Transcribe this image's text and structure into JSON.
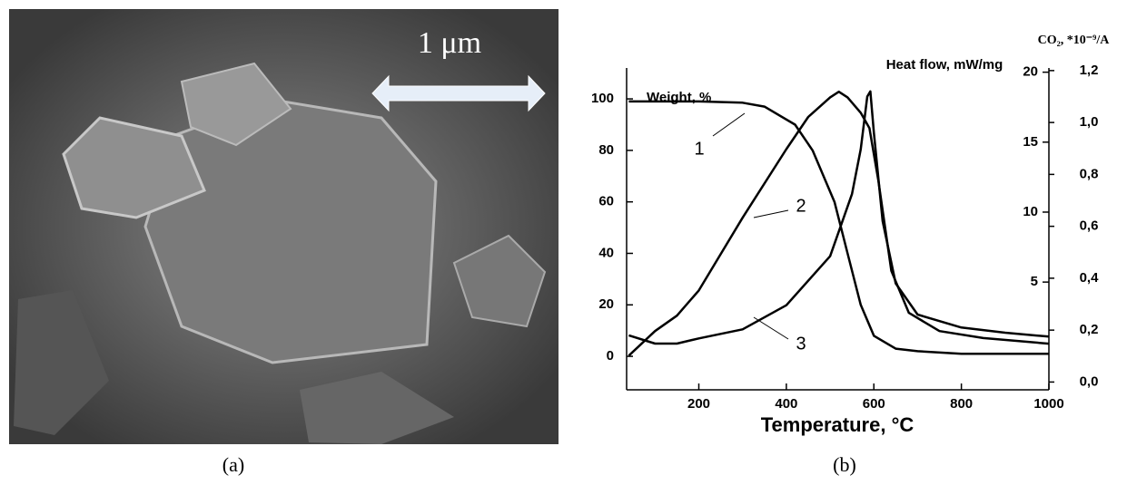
{
  "image": {
    "scale_label": "1 μm",
    "caption": "(a)"
  },
  "chart_data": {
    "type": "line",
    "caption": "(b)",
    "x_label": "Temperature, °C",
    "y_label": "Weight, %",
    "y2_label": "Heat flow, mW/mg",
    "y3_label": "CO₂, *10⁻⁹/A",
    "xlim": [
      35,
      1000
    ],
    "xticks": [
      200,
      400,
      600,
      800,
      1000
    ],
    "ylim": [
      -13,
      112
    ],
    "yticks": [
      0,
      20,
      40,
      60,
      80,
      100
    ],
    "y2lim": [
      -2.7,
      20.3
    ],
    "y2ticks": [
      5,
      10,
      15,
      20
    ],
    "y3lim": [
      -0.03,
      1.21
    ],
    "y3ticks": [
      {
        "value": 0,
        "label": "0,0"
      },
      {
        "value": 0.2,
        "label": "0,2"
      },
      {
        "value": 0.4,
        "label": "0,4"
      },
      {
        "value": 0.6,
        "label": "0,6"
      },
      {
        "value": 0.8,
        "label": "0,8"
      },
      {
        "value": 1.0,
        "label": "1,0"
      },
      {
        "value": 1.2,
        "label": "1,2"
      }
    ],
    "annotations": [
      "1",
      "2",
      "3"
    ],
    "series": [
      {
        "color": "#000000",
        "axis": "y",
        "x": [
          40,
          100,
          200,
          300,
          350,
          420,
          460,
          510,
          540,
          570,
          600,
          650,
          700,
          800,
          1000
        ],
        "values": [
          99,
          99,
          99,
          98.5,
          97,
          90,
          80,
          60,
          40,
          20,
          8,
          3,
          2,
          1,
          1
        ]
      },
      {
        "color": "#000000",
        "axis": "y2",
        "x": [
          40,
          100,
          150,
          200,
          300,
          400,
          450,
          500,
          520,
          540,
          570,
          590,
          610,
          640,
          680,
          750,
          850,
          1000
        ],
        "values": [
          -0.26,
          1.5,
          2.6,
          4.4,
          9.6,
          14.5,
          16.8,
          18.2,
          18.6,
          18.2,
          17.1,
          16.0,
          12.3,
          5.8,
          2.8,
          1.5,
          1.0,
          0.6
        ]
      },
      {
        "color": "#000000",
        "axis": "y3",
        "x": [
          40,
          100,
          150,
          200,
          300,
          400,
          500,
          550,
          570,
          585,
          592,
          600,
          620,
          650,
          700,
          800,
          900,
          1000
        ],
        "values": [
          0.18,
          0.148,
          0.148,
          0.168,
          0.203,
          0.296,
          0.485,
          0.725,
          0.897,
          1.1,
          1.12,
          0.96,
          0.62,
          0.38,
          0.26,
          0.21,
          0.19,
          0.175
        ]
      }
    ]
  }
}
